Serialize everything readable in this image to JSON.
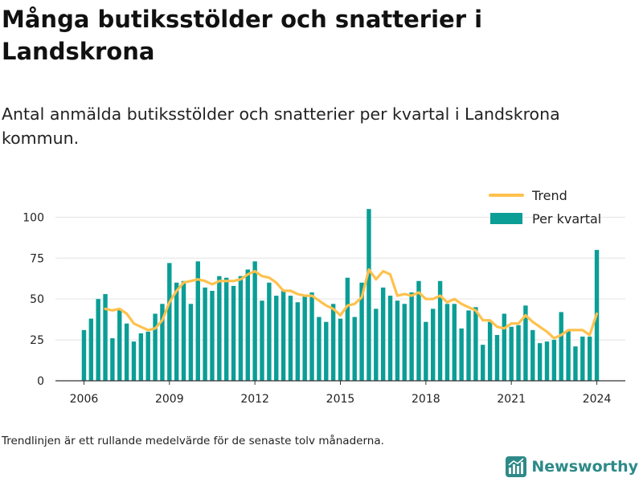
{
  "title": "Många butiksstölder och snatterier i Landskrona",
  "subtitle": "Antal anmälda butiksstölder och snatterier per kvartal i Landskrona kommun.",
  "footnote": "Trendlinjen är ett rullande medelvärde för de senaste tolv månaderna.",
  "brand": "Newsworthy",
  "colors": {
    "bars": "#0a9e96",
    "trend": "#ffc14d",
    "grid": "#e3e3e3",
    "axis": "#333333",
    "brand": "#2d8a88"
  },
  "chart_data": {
    "type": "bar",
    "title": "",
    "xlabel": "",
    "ylabel": "",
    "ylim": [
      0,
      110
    ],
    "yticks": [
      0,
      25,
      50,
      75,
      100
    ],
    "x_ticks": [
      "2006",
      "2009",
      "2012",
      "2015",
      "2018",
      "2021",
      "2024"
    ],
    "x_range": [
      "2005 Q1",
      "2024 Q4"
    ],
    "legend": {
      "position": "top-right"
    },
    "grid": true,
    "categories": [
      "2006 Q1",
      "2006 Q2",
      "2006 Q3",
      "2006 Q4",
      "2007 Q1",
      "2007 Q2",
      "2007 Q3",
      "2007 Q4",
      "2008 Q1",
      "2008 Q2",
      "2008 Q3",
      "2008 Q4",
      "2009 Q1",
      "2009 Q2",
      "2009 Q3",
      "2009 Q4",
      "2010 Q1",
      "2010 Q2",
      "2010 Q3",
      "2010 Q4",
      "2011 Q1",
      "2011 Q2",
      "2011 Q3",
      "2011 Q4",
      "2012 Q1",
      "2012 Q2",
      "2012 Q3",
      "2012 Q4",
      "2013 Q1",
      "2013 Q2",
      "2013 Q3",
      "2013 Q4",
      "2014 Q1",
      "2014 Q2",
      "2014 Q3",
      "2014 Q4",
      "2015 Q1",
      "2015 Q2",
      "2015 Q3",
      "2015 Q4",
      "2016 Q1",
      "2016 Q2",
      "2016 Q3",
      "2016 Q4",
      "2017 Q1",
      "2017 Q2",
      "2017 Q3",
      "2017 Q4",
      "2018 Q1",
      "2018 Q2",
      "2018 Q3",
      "2018 Q4",
      "2019 Q1",
      "2019 Q2",
      "2019 Q3",
      "2019 Q4",
      "2020 Q1",
      "2020 Q2",
      "2020 Q3",
      "2020 Q4",
      "2021 Q1",
      "2021 Q2",
      "2021 Q3",
      "2021 Q4",
      "2022 Q1",
      "2022 Q2",
      "2022 Q3",
      "2022 Q4",
      "2023 Q1",
      "2023 Q2",
      "2023 Q3",
      "2023 Q4",
      "2024 Q1"
    ],
    "series": [
      {
        "name": "Per kvartal",
        "type": "bar",
        "values": [
          31,
          38,
          50,
          53,
          26,
          44,
          35,
          24,
          29,
          30,
          41,
          47,
          72,
          60,
          61,
          47,
          73,
          57,
          55,
          64,
          63,
          58,
          64,
          68,
          73,
          49,
          60,
          52,
          55,
          52,
          48,
          52,
          54,
          39,
          36,
          47,
          38,
          63,
          39,
          60,
          105,
          44,
          57,
          52,
          49,
          47,
          54,
          61,
          36,
          44,
          61,
          47,
          47,
          32,
          43,
          45,
          22,
          36,
          28,
          41,
          33,
          34,
          46,
          31,
          23,
          24,
          25,
          42,
          31,
          21,
          27,
          27,
          80
        ]
      },
      {
        "name": "Trend",
        "type": "line",
        "values": [
          null,
          null,
          null,
          44,
          43,
          44,
          41,
          35,
          33,
          31,
          32,
          37,
          48,
          55,
          60,
          61,
          62,
          61,
          59,
          61,
          61,
          61,
          62,
          65,
          67,
          64,
          63,
          60,
          55,
          55,
          53,
          52,
          52,
          49,
          46,
          44,
          40,
          46,
          47,
          51,
          68,
          62,
          67,
          65,
          52,
          53,
          52,
          54,
          50,
          50,
          52,
          48,
          50,
          47,
          45,
          43,
          37,
          37,
          33,
          32,
          35,
          35,
          40,
          36,
          33,
          30,
          26,
          28,
          31,
          31,
          31,
          28,
          41
        ]
      }
    ]
  }
}
